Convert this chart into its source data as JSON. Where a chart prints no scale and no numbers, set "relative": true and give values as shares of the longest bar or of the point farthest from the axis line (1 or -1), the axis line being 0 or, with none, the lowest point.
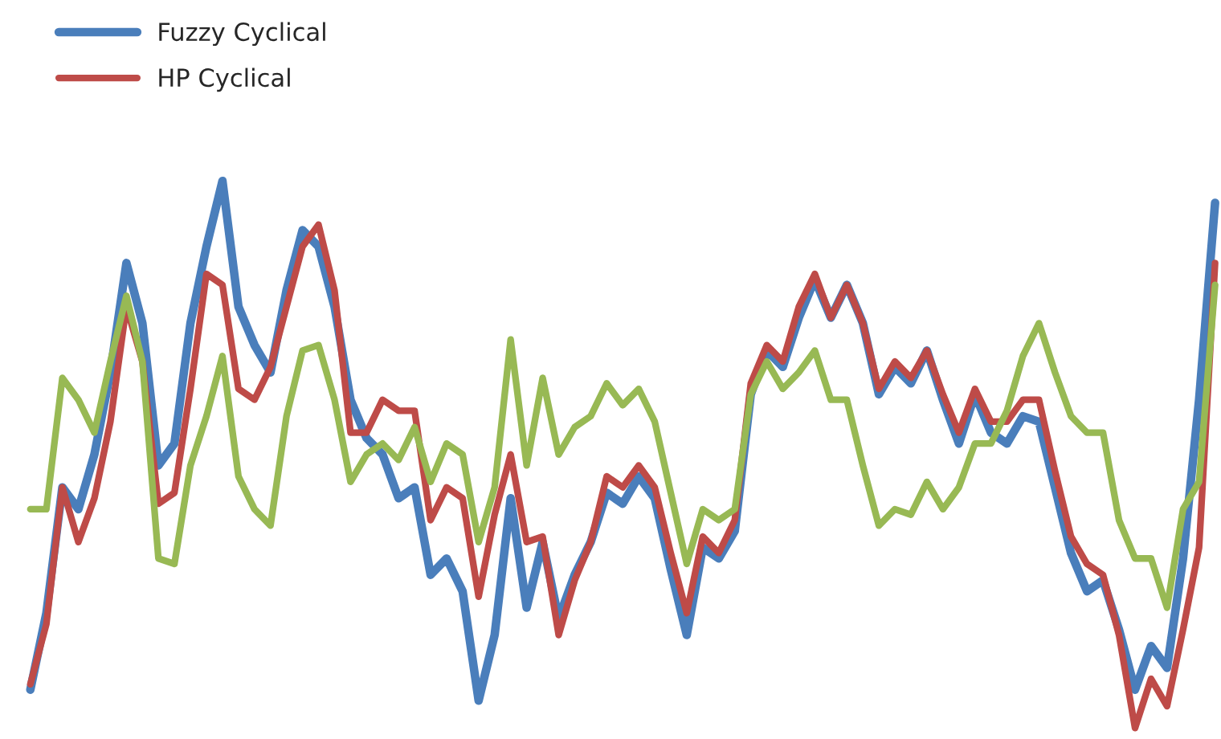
{
  "chart_data": {
    "type": "line",
    "relative": true,
    "legend": "top left",
    "marker": "none",
    "line_style": "solid",
    "categories": [
      null,
      null,
      null,
      null,
      null,
      null,
      null,
      null,
      null,
      null,
      null,
      null,
      null,
      null,
      null,
      null,
      null,
      null,
      null,
      null,
      null,
      null,
      null,
      null,
      null,
      null,
      null,
      null,
      null,
      null,
      null,
      null,
      null,
      null,
      null,
      null,
      null,
      null,
      null,
      null,
      null,
      null,
      null,
      null,
      null,
      null,
      null,
      null,
      null,
      null,
      null,
      null,
      null,
      null,
      null,
      null,
      null,
      null,
      null,
      null,
      null,
      null,
      null,
      null,
      null,
      null,
      null,
      null,
      null,
      null,
      null,
      null,
      null,
      null,
      null
    ],
    "series": [
      {
        "name": "Fuzzy Cyclical",
        "color": "#4a7ebb",
        "values": [
          0.07,
          0.21,
          0.44,
          0.4,
          0.5,
          0.65,
          0.85,
          0.74,
          0.48,
          0.52,
          0.74,
          0.88,
          1.0,
          0.77,
          0.7,
          0.65,
          0.8,
          0.91,
          0.88,
          0.77,
          0.6,
          0.53,
          0.5,
          0.42,
          0.44,
          0.28,
          0.31,
          0.25,
          0.05,
          0.17,
          0.42,
          0.22,
          0.34,
          0.2,
          0.28,
          0.34,
          0.43,
          0.41,
          0.46,
          0.42,
          0.29,
          0.17,
          0.33,
          0.31,
          0.36,
          0.61,
          0.69,
          0.66,
          0.75,
          0.82,
          0.75,
          0.81,
          0.74,
          0.61,
          0.66,
          0.63,
          0.69,
          0.6,
          0.52,
          0.61,
          0.54,
          0.52,
          0.57,
          0.56,
          0.44,
          0.32,
          0.25,
          0.27,
          0.18,
          0.07,
          0.15,
          0.11,
          0.31,
          0.6,
          0.96
        ]
      },
      {
        "name": "HP Cyclical",
        "color": "#be4b48",
        "values": [
          0.08,
          0.19,
          0.44,
          0.34,
          0.42,
          0.56,
          0.77,
          0.67,
          0.41,
          0.43,
          0.62,
          0.83,
          0.81,
          0.62,
          0.6,
          0.66,
          0.77,
          0.88,
          0.92,
          0.8,
          0.54,
          0.54,
          0.6,
          0.58,
          0.58,
          0.38,
          0.44,
          0.42,
          0.24,
          0.39,
          0.5,
          0.34,
          0.35,
          0.17,
          0.27,
          0.34,
          0.46,
          0.44,
          0.48,
          0.44,
          0.32,
          0.21,
          0.35,
          0.32,
          0.38,
          0.63,
          0.7,
          0.67,
          0.77,
          0.83,
          0.75,
          0.81,
          0.74,
          0.62,
          0.67,
          0.64,
          0.69,
          0.61,
          0.54,
          0.62,
          0.56,
          0.56,
          0.6,
          0.6,
          0.47,
          0.35,
          0.3,
          0.28,
          0.17,
          0.0,
          0.09,
          0.04,
          0.18,
          0.33,
          0.85
        ]
      },
      {
        "color": "#98b954",
        "values": [
          0.4,
          0.4,
          0.64,
          0.6,
          0.54,
          0.67,
          0.79,
          0.67,
          0.31,
          0.3,
          0.48,
          0.57,
          0.68,
          0.46,
          0.4,
          0.37,
          0.57,
          0.69,
          0.7,
          0.6,
          0.45,
          0.5,
          0.52,
          0.49,
          0.55,
          0.45,
          0.52,
          0.5,
          0.34,
          0.44,
          0.71,
          0.48,
          0.64,
          0.5,
          0.55,
          0.57,
          0.63,
          0.59,
          0.62,
          0.56,
          0.43,
          0.3,
          0.4,
          0.38,
          0.4,
          0.61,
          0.67,
          0.62,
          0.65,
          0.69,
          0.6,
          0.6,
          0.48,
          0.37,
          0.4,
          0.39,
          0.45,
          0.4,
          0.44,
          0.52,
          0.52,
          0.58,
          0.68,
          0.74,
          0.65,
          0.57,
          0.54,
          0.54,
          0.38,
          0.31,
          0.31,
          0.22,
          0.4,
          0.45,
          0.81
        ]
      }
    ]
  }
}
